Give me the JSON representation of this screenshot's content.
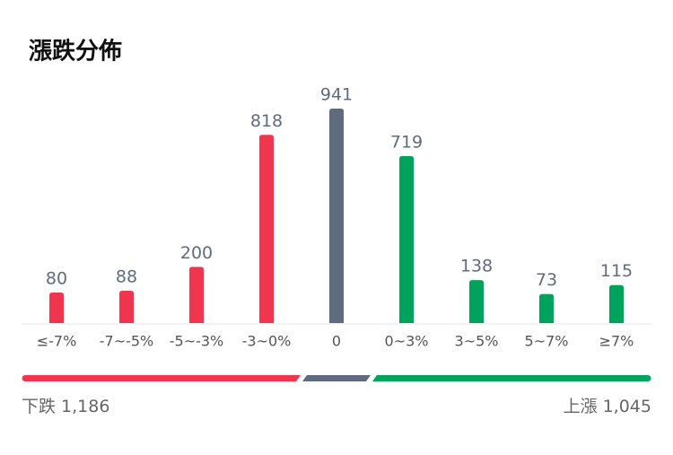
{
  "chart_data": {
    "type": "bar",
    "title": "漲跌分佈",
    "categories": [
      "≤-7%",
      "-7~-5%",
      "-5~-3%",
      "-3~0%",
      "0",
      "0~3%",
      "3~5%",
      "5~7%",
      "≥7%"
    ],
    "values": [
      80,
      88,
      200,
      818,
      941,
      719,
      138,
      73,
      115
    ],
    "colors": [
      "#f0364f",
      "#f0364f",
      "#f0364f",
      "#f0364f",
      "#606b80",
      "#00a35c",
      "#00a35c",
      "#00a35c",
      "#00a35c"
    ]
  },
  "summary": {
    "down_label": "下跌",
    "down_count": "1,186",
    "up_label": "上漲",
    "up_count": "1,045"
  }
}
